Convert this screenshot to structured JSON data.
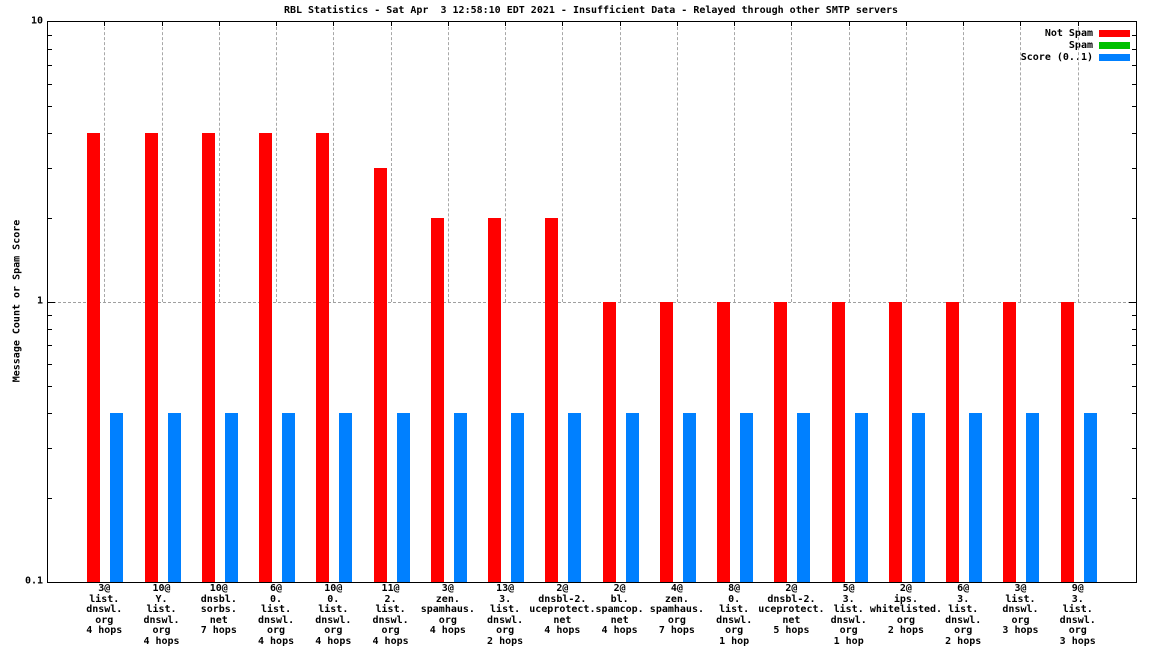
{
  "title": "RBL Statistics - Sat Apr  3 12:58:10 EDT 2021 - Insufficient Data - Relayed through other SMTP servers",
  "y_axis": {
    "label": "Message Count or Spam Score",
    "ticks": [
      "10",
      "1",
      "0.1"
    ],
    "scale": "log"
  },
  "legend": [
    {
      "label": "Not Spam",
      "color": "#ff0000"
    },
    {
      "label": "Spam",
      "color": "#00c000"
    },
    {
      "label": "Score (0..1)",
      "color": "#0080ff"
    }
  ],
  "chart_data": {
    "type": "bar",
    "title": "RBL Statistics - Sat Apr  3 12:58:10 EDT 2021 - Insufficient Data - Relayed through other SMTP servers",
    "ylabel": "Message Count or Spam Score",
    "xlabel": "",
    "yscale": "log",
    "ylim": [
      0.1,
      10
    ],
    "grid": "x-dashed-to-y1, y-dashed-at-1",
    "legend_position": "top-right",
    "categories": [
      [
        "3@",
        "list.",
        "dnswl.",
        "org",
        "4 hops"
      ],
      [
        "10@",
        "Y.",
        "list.",
        "dnswl.",
        "org",
        "4 hops"
      ],
      [
        "10@",
        "dnsbl.",
        "sorbs.",
        "net",
        "7 hops"
      ],
      [
        "6@",
        "0.",
        "list.",
        "dnswl.",
        "org",
        "4 hops"
      ],
      [
        "10@",
        "0.",
        "list.",
        "dnswl.",
        "org",
        "4 hops"
      ],
      [
        "11@",
        "2.",
        "list.",
        "dnswl.",
        "org",
        "4 hops"
      ],
      [
        "3@",
        "zen.",
        "spamhaus.",
        "org",
        "4 hops"
      ],
      [
        "13@",
        "3.",
        "list.",
        "dnswl.",
        "org",
        "2 hops"
      ],
      [
        "2@",
        "dnsbl-2.",
        "uceprotect.",
        "net",
        "4 hops"
      ],
      [
        "2@",
        "bl.",
        "spamcop.",
        "net",
        "4 hops"
      ],
      [
        "4@",
        "zen.",
        "spamhaus.",
        "org",
        "7 hops"
      ],
      [
        "8@",
        "0.",
        "list.",
        "dnswl.",
        "org",
        "1 hop"
      ],
      [
        "2@",
        "dnsbl-2.",
        "uceprotect.",
        "net",
        "5 hops"
      ],
      [
        "5@",
        "3.",
        "list.",
        "dnswl.",
        "org",
        "1 hop"
      ],
      [
        "2@",
        "ips.",
        "whitelisted.",
        "org",
        "2 hops"
      ],
      [
        "6@",
        "3.",
        "list.",
        "dnswl.",
        "org",
        "2 hops"
      ],
      [
        "3@",
        "list.",
        "dnswl.",
        "org",
        "3 hops"
      ],
      [
        "9@",
        "3.",
        "list.",
        "dnswl.",
        "org",
        "3 hops"
      ]
    ],
    "series": [
      {
        "name": "Not Spam",
        "color": "#ff0000",
        "values": [
          4,
          4,
          4,
          4,
          4,
          3,
          2,
          2,
          2,
          1,
          1,
          1,
          1,
          1,
          1,
          1,
          1,
          1
        ]
      },
      {
        "name": "Spam",
        "color": "#00c000",
        "values": [
          0,
          0,
          0,
          0,
          0,
          0,
          0,
          0,
          0,
          0,
          0,
          0,
          0,
          0,
          0,
          0,
          0,
          0
        ]
      },
      {
        "name": "Score (0..1)",
        "color": "#0080ff",
        "values": [
          0.4,
          0.4,
          0.4,
          0.4,
          0.4,
          0.4,
          0.4,
          0.4,
          0.4,
          0.4,
          0.4,
          0.4,
          0.4,
          0.4,
          0.4,
          0.4,
          0.4,
          0.4
        ]
      }
    ]
  }
}
